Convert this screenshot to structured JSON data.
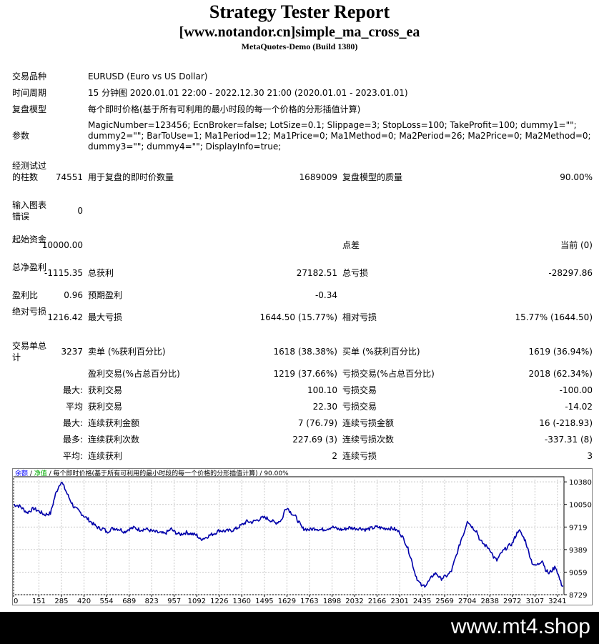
{
  "report": {
    "title": "Strategy Tester Report",
    "subtitle": "[www.notandor.cn]simple_ma_cross_ea",
    "build": "MetaQuotes-Demo (Build 1380)"
  },
  "info": {
    "symbol_label": "交易品种",
    "symbol_value": "EURUSD (Euro vs US Dollar)",
    "period_label": "时间周期",
    "period_value": "15 分钟图 2020.01.01 22:00 - 2022.12.30 21:00 (2020.01.01 - 2023.01.01)",
    "model_label": "复盘模型",
    "model_value": "每个即时价格(基于所有可利用的最小时段的每一个价格的分形插值计算)",
    "params_label": "参数",
    "params_value": "MagicNumber=123456; EcnBroker=false; LotSize=0.1; Slippage=3; StopLoss=100; TakeProfit=100; dummy1=\"\"; dummy2=\"\"; BarToUse=1; Ma1Period=12; Ma1Price=0; Ma1Method=0; Ma2Period=26; Ma2Price=0; Ma2Method=0; dummy3=\"\"; dummy4=\"\"; DisplayInfo=true;"
  },
  "stats": {
    "bars_label": "经测试过的柱数",
    "bars_value": "74551",
    "ticks_label": "用于复盘的即时价数量",
    "ticks_value": "1689009",
    "quality_label": "复盘模型的质量",
    "quality_value": "90.00%",
    "errors_label": "输入图表错误",
    "errors_value": "0",
    "deposit_label": "起始资金",
    "deposit_value": "10000.00",
    "spread_label": "点差",
    "spread_value": "当前 (0)",
    "net_label": "总净盈利",
    "net_value": "-1115.35",
    "gross_profit_label": "总获利",
    "gross_profit_value": "27182.51",
    "gross_loss_label": "总亏损",
    "gross_loss_value": "-28297.86",
    "pf_label": "盈利比",
    "pf_value": "0.96",
    "payoff_label": "预期盈利",
    "payoff_value": "-0.34",
    "abs_dd_label": "绝对亏损",
    "abs_dd_value": "1216.42",
    "max_dd_label": "最大亏损",
    "max_dd_value": "1644.50 (15.77%)",
    "rel_dd_label": "相对亏损",
    "rel_dd_value": "15.77% (1644.50)",
    "trades_label": "交易单总计",
    "trades_value": "3237",
    "short_label": "卖单 (%获利百分比)",
    "short_value": "1618 (38.38%)",
    "long_label": "买单 (%获利百分比)",
    "long_value": "1619 (36.94%)",
    "profit_trades_label": "盈利交易(%占总百分比)",
    "profit_trades_value": "1219 (37.66%)",
    "loss_trades_label": "亏损交易(%占总百分比)",
    "loss_trades_value": "2018 (62.34%)",
    "largest_label": "最大:",
    "largest_profit_label": "获利交易",
    "largest_profit_value": "100.10",
    "largest_loss_label": "亏损交易",
    "largest_loss_value": "-100.00",
    "average_label": "平均",
    "average_profit_label": "获利交易",
    "average_profit_value": "22.30",
    "average_loss_label": "亏损交易",
    "average_loss_value": "-14.02",
    "max_consec_label": "最大:",
    "max_consec_wins_label": "连续获利金额",
    "max_consec_wins_value": "7 (76.79)",
    "max_consec_losses_label": "连续亏损金额",
    "max_consec_losses_value": "16 (-218.93)",
    "maximal_label": "最多:",
    "maximal_profit_label": "连续获利次数",
    "maximal_profit_value": "227.69 (3)",
    "maximal_loss_label": "连续亏损次数",
    "maximal_loss_value": "-337.31 (8)",
    "avg_consec_label": "平均:",
    "avg_consec_wins_label": "连续获利",
    "avg_consec_wins_value": "2",
    "avg_consec_losses_label": "连续亏损",
    "avg_consec_losses_value": "3"
  },
  "chart_data": {
    "type": "line",
    "legend": [
      {
        "text": "余额",
        "color": "#0000ff"
      },
      {
        "text": " / ",
        "color": "#000000"
      },
      {
        "text": "净值",
        "color": "#00aa00"
      },
      {
        "text": " / 每个即时价格(基于所有可利用的最小时段的每一个价格的分形插值计算) / 90.00%",
        "color": "#000000"
      }
    ],
    "line_color": "#0000aa",
    "x_ticks": [
      0,
      151,
      285,
      420,
      554,
      689,
      823,
      957,
      1092,
      1226,
      1360,
      1495,
      1629,
      1763,
      1898,
      2032,
      2166,
      2301,
      2435,
      2569,
      2704,
      2838,
      2972,
      3107,
      3241
    ],
    "y_ticks": [
      10380,
      10050,
      9719,
      9389,
      9059,
      8729
    ],
    "xlim": [
      0,
      3280
    ],
    "ylim": [
      8729,
      10455
    ],
    "points": [
      [
        0,
        10050
      ],
      [
        40,
        10020
      ],
      [
        80,
        9930
      ],
      [
        120,
        9990
      ],
      [
        151,
        9950
      ],
      [
        185,
        9900
      ],
      [
        220,
        9920
      ],
      [
        250,
        10200
      ],
      [
        275,
        10350
      ],
      [
        285,
        10380
      ],
      [
        300,
        10310
      ],
      [
        330,
        10150
      ],
      [
        360,
        10010
      ],
      [
        390,
        9950
      ],
      [
        420,
        9880
      ],
      [
        450,
        9820
      ],
      [
        480,
        9750
      ],
      [
        510,
        9700
      ],
      [
        540,
        9690
      ],
      [
        554,
        9640
      ],
      [
        580,
        9690
      ],
      [
        610,
        9700
      ],
      [
        640,
        9680
      ],
      [
        660,
        9650
      ],
      [
        689,
        9690
      ],
      [
        720,
        9710
      ],
      [
        750,
        9680
      ],
      [
        790,
        9690
      ],
      [
        823,
        9660
      ],
      [
        860,
        9640
      ],
      [
        900,
        9620
      ],
      [
        940,
        9690
      ],
      [
        957,
        9650
      ],
      [
        990,
        9610
      ],
      [
        1030,
        9640
      ],
      [
        1060,
        9620
      ],
      [
        1092,
        9600
      ],
      [
        1110,
        9540
      ],
      [
        1140,
        9560
      ],
      [
        1170,
        9600
      ],
      [
        1200,
        9630
      ],
      [
        1226,
        9670
      ],
      [
        1260,
        9660
      ],
      [
        1300,
        9670
      ],
      [
        1330,
        9700
      ],
      [
        1360,
        9750
      ],
      [
        1390,
        9800
      ],
      [
        1420,
        9790
      ],
      [
        1450,
        9820
      ],
      [
        1480,
        9850
      ],
      [
        1500,
        9860
      ],
      [
        1530,
        9820
      ],
      [
        1560,
        9780
      ],
      [
        1580,
        9800
      ],
      [
        1600,
        9830
      ],
      [
        1615,
        9960
      ],
      [
        1629,
        10010
      ],
      [
        1650,
        9940
      ],
      [
        1680,
        9870
      ],
      [
        1700,
        9790
      ],
      [
        1720,
        9700
      ],
      [
        1740,
        9690
      ],
      [
        1763,
        9680
      ],
      [
        1800,
        9700
      ],
      [
        1830,
        9680
      ],
      [
        1860,
        9690
      ],
      [
        1898,
        9720
      ],
      [
        1930,
        9690
      ],
      [
        1960,
        9680
      ],
      [
        2000,
        9710
      ],
      [
        2032,
        9700
      ],
      [
        2070,
        9700
      ],
      [
        2100,
        9680
      ],
      [
        2130,
        9700
      ],
      [
        2166,
        9720
      ],
      [
        2200,
        9700
      ],
      [
        2240,
        9700
      ],
      [
        2270,
        9690
      ],
      [
        2301,
        9640
      ],
      [
        2330,
        9520
      ],
      [
        2350,
        9400
      ],
      [
        2370,
        9250
      ],
      [
        2390,
        9060
      ],
      [
        2410,
        8930
      ],
      [
        2435,
        8850
      ],
      [
        2460,
        8880
      ],
      [
        2480,
        8940
      ],
      [
        2500,
        9020
      ],
      [
        2520,
        9040
      ],
      [
        2545,
        8960
      ],
      [
        2569,
        8990
      ],
      [
        2590,
        9020
      ],
      [
        2610,
        9080
      ],
      [
        2630,
        9240
      ],
      [
        2650,
        9390
      ],
      [
        2670,
        9560
      ],
      [
        2685,
        9640
      ],
      [
        2704,
        9820
      ],
      [
        2720,
        9760
      ],
      [
        2740,
        9700
      ],
      [
        2760,
        9660
      ],
      [
        2780,
        9520
      ],
      [
        2810,
        9450
      ],
      [
        2838,
        9400
      ],
      [
        2860,
        9280
      ],
      [
        2880,
        9230
      ],
      [
        2910,
        9350
      ],
      [
        2940,
        9420
      ],
      [
        2972,
        9480
      ],
      [
        2990,
        9580
      ],
      [
        3010,
        9680
      ],
      [
        3030,
        9600
      ],
      [
        3050,
        9520
      ],
      [
        3070,
        9350
      ],
      [
        3090,
        9200
      ],
      [
        3107,
        9150
      ],
      [
        3130,
        9180
      ],
      [
        3150,
        9240
      ],
      [
        3170,
        9100
      ],
      [
        3190,
        9040
      ],
      [
        3210,
        9090
      ],
      [
        3230,
        9140
      ],
      [
        3241,
        9060
      ],
      [
        3255,
        8950
      ],
      [
        3265,
        8880
      ],
      [
        3275,
        8860
      ]
    ]
  },
  "footer": {
    "watermark": "www.mt4.shop"
  }
}
